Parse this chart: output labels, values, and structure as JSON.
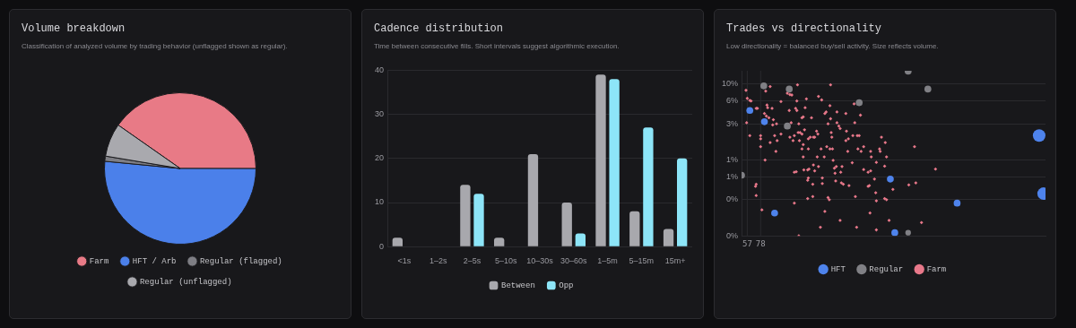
{
  "chart_data": [
    {
      "type": "pie",
      "title": "Volume breakdown",
      "subtitle": "Classification of analyzed volume by trading behavior (unflagged shown as regular).",
      "categories": [
        "Farm",
        "HFT / Arb",
        "Regular (flagged)",
        "Regular (unflagged)"
      ],
      "values": [
        40.3,
        51.5,
        1.1,
        7.1
      ],
      "colors": [
        "#e87a86",
        "#4b80ea",
        "#7e7e84",
        "#a9a9ae"
      ],
      "legend": "bottom"
    },
    {
      "type": "bar",
      "title": "Cadence distribution",
      "subtitle": "Time between consecutive fills. Short intervals suggest algorithmic execution.",
      "categories": [
        "<1s",
        "1–2s",
        "2–5s",
        "5–10s",
        "10–30s",
        "30–60s",
        "1–5m",
        "5–15m",
        "15m+"
      ],
      "series": [
        {
          "name": "Between",
          "color": "#a8a8ad",
          "values": [
            2,
            0,
            14,
            2,
            21,
            10,
            39,
            8,
            4
          ]
        },
        {
          "name": "Opp",
          "color": "#8de5f8",
          "values": [
            0,
            0,
            12,
            0,
            0,
            3,
            38,
            27,
            20
          ]
        }
      ],
      "ylim": [
        0,
        40
      ],
      "yticks": [
        0,
        10,
        20,
        30,
        40
      ],
      "grid": "y",
      "legend": "bottom"
    },
    {
      "type": "bubble",
      "title": "Trades vs directionality",
      "subtitle": "Low directionality = balanced buy/sell activity. Size reflects volume.",
      "log": "y",
      "xlim": [
        48,
        526
      ],
      "xticks": [
        57,
        78
      ],
      "ylim": [
        0.1,
        15
      ],
      "yticks": [
        {
          "value": 10,
          "label": "10%"
        },
        {
          "value": 6,
          "label": "6%"
        },
        {
          "value": 3,
          "label": "3%"
        },
        {
          "value": 1,
          "label": "1%"
        },
        {
          "value": 0.6,
          "label": "1%"
        },
        {
          "value": 0.3,
          "label": "0%"
        },
        {
          "value": 0.1,
          "label": "0%"
        }
      ],
      "grid": true,
      "legend": "bottom",
      "series": [
        {
          "name": "HFT",
          "color": "#4e83ec",
          "x": [
            61,
            84,
            100,
            282,
            289,
            387,
            516,
            523
          ],
          "values": [
            4.5,
            3.2,
            0.2,
            0.56,
            0.11,
            0.27,
            2.1,
            0.36
          ],
          "sizes": [
            0.3,
            0.3,
            0.3,
            0.3,
            0.3,
            0.3,
            1,
            1
          ]
        },
        {
          "name": "Regular",
          "color": "#808085",
          "x": [
            83,
            123,
            120,
            233,
            310,
            341,
            310,
            48
          ],
          "values": [
            9.5,
            8.6,
            2.8,
            5.7,
            14.8,
            8.6,
            0.11,
            0.63
          ],
          "sizes": [
            0.3,
            0.3,
            0.3,
            0.3,
            0.3,
            0.3,
            0.2,
            0.3
          ]
        },
        {
          "name": "Farm",
          "type": "scatter",
          "marker": "diamond",
          "color": "#e8788a",
          "x": [
            55,
            57,
            61,
            63,
            56,
            61,
            71,
            73,
            78,
            78,
            78,
            85,
            86,
            88,
            89,
            84,
            87,
            91,
            93,
            96,
            98,
            97,
            103,
            100,
            104,
            93,
            102,
            110,
            110,
            120,
            124,
            127,
            123,
            126,
            124,
            131,
            129,
            136,
            135,
            133,
            135,
            138,
            137,
            140,
            139,
            143,
            145,
            143,
            145,
            150,
            148,
            145,
            143,
            158,
            147,
            153,
            153,
            156,
            161,
            163,
            169,
            174,
            166,
            168,
            173,
            167,
            178,
            179,
            181,
            187,
            188,
            188,
            184,
            189,
            190,
            182,
            187,
            191,
            192,
            195,
            197,
            198,
            198,
            201,
            203,
            204,
            206,
            212,
            213,
            212,
            216,
            215,
            222,
            226,
            223,
            225,
            235,
            230,
            233,
            231,
            236,
            240,
            251,
            252,
            260,
            266,
            268,
            274,
            276,
            273,
            265,
            240,
            251,
            247,
            257,
            249,
            217,
            208,
            205,
            196,
            175,
            175,
            160,
            152,
            153,
            146,
            152,
            154,
            161,
            163,
            169,
            131,
            134,
            71,
            70,
            71,
            80,
            131,
            152,
            160,
            184,
            186,
            179,
            172,
            203,
            227,
            229,
            247,
            250,
            259,
            260,
            260,
            273,
            276,
            280,
            286,
            311,
            322,
            331,
            320,
            353,
            138,
            194
          ],
          "values": [
            8.3,
            6.5,
            6.1,
            6.0,
            3.1,
            2.1,
            4.8,
            4.8,
            2.1,
            1.9,
            1.5,
            1.0,
            8.1,
            5.3,
            4.9,
            4.1,
            3.8,
            3.6,
            9.3,
            4.8,
            3.4,
            2.9,
            3.0,
            2.1,
            1.8,
            1.7,
            1.3,
            5.9,
            2.2,
            7.6,
            7.3,
            7.2,
            4.5,
            3.1,
            2.0,
            2.1,
            1.8,
            9.8,
            6.0,
            4.8,
            4.5,
            3.0,
            2.3,
            2.3,
            1.8,
            2.2,
            1.6,
            1.4,
            1.1,
            6.4,
            4.9,
            3.7,
            3.6,
            3.6,
            2.5,
            1.9,
            1.4,
            2.0,
            2.0,
            2.0,
            6.9,
            6.2,
            2.4,
            2.2,
            1.4,
            1.1,
            1.1,
            4.1,
            4.3,
            5.2,
            9.8,
            3.5,
            3.0,
            2.3,
            2.0,
            1.5,
            1.4,
            1.4,
            0.99,
            0.67,
            0.82,
            4.3,
            3.1,
            2.8,
            2.6,
            0.69,
            0.82,
            4.1,
            2.4,
            1.8,
            1.9,
            1.3,
            0.92,
            3.1,
            2.1,
            5.5,
            3.9,
            2.1,
            2.1,
            1.4,
            1.3,
            1.5,
            1.3,
            1.1,
            0.93,
            1.3,
            2.0,
            1.7,
            1.1,
            0.83,
            1.4,
            0.75,
            0.72,
            0.69,
            0.56,
            0.46,
            0.46,
            0.48,
            0.5,
            0.53,
            0.58,
            0.49,
            0.48,
            0.54,
            0.58,
            0.74,
            0.74,
            0.76,
            0.86,
            0.72,
            0.82,
            0.69,
            0.7,
            0.48,
            0.45,
            0.34,
            0.22,
            0.27,
            0.31,
            0.33,
            0.32,
            0.3,
            0.21,
            0.13,
            0.16,
            0.33,
            0.13,
            0.45,
            0.2,
            0.37,
            0.29,
            0.12,
            0.31,
            0.3,
            0.16,
            0.41,
            0.47,
            0.5,
            0.15,
            1.5,
            0.76,
            0.1,
            0.78
          ]
        }
      ]
    }
  ]
}
